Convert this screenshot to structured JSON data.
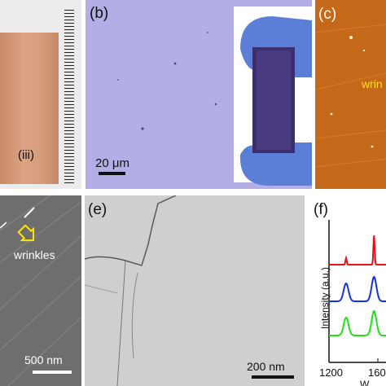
{
  "panels": {
    "a": {
      "sublabel": "(iii)"
    },
    "b": {
      "label": "(b)",
      "scale": "20 μm"
    },
    "c": {
      "label": "(c)",
      "annotation": "wrin"
    },
    "d": {
      "annotation": "wrinkles",
      "scale": "500 nm"
    },
    "e": {
      "label": "(e)",
      "scale": "200 nm"
    },
    "f": {
      "label": "(f)"
    }
  },
  "chart_data": {
    "type": "line",
    "ylabel": "Intensity (a.u.)",
    "xlabel": "W",
    "x_ticks": [
      "1200",
      "160"
    ],
    "series": [
      {
        "color": "#e8101a",
        "peaks": [
          1350,
          1595
        ],
        "relative": "sharp G"
      },
      {
        "color": "#1530e6",
        "peaks": [
          1350,
          1595
        ],
        "relative": "broad D and G"
      },
      {
        "color": "#22e01a",
        "peaks": [
          1350,
          1595
        ],
        "relative": "broad D and G"
      }
    ]
  },
  "colors": {
    "copper": "#d39a78",
    "optical_bg": "#b3aee6",
    "afm": "#c4681a",
    "sem": "#6e6e6e",
    "tem": "#cfcfcf"
  }
}
